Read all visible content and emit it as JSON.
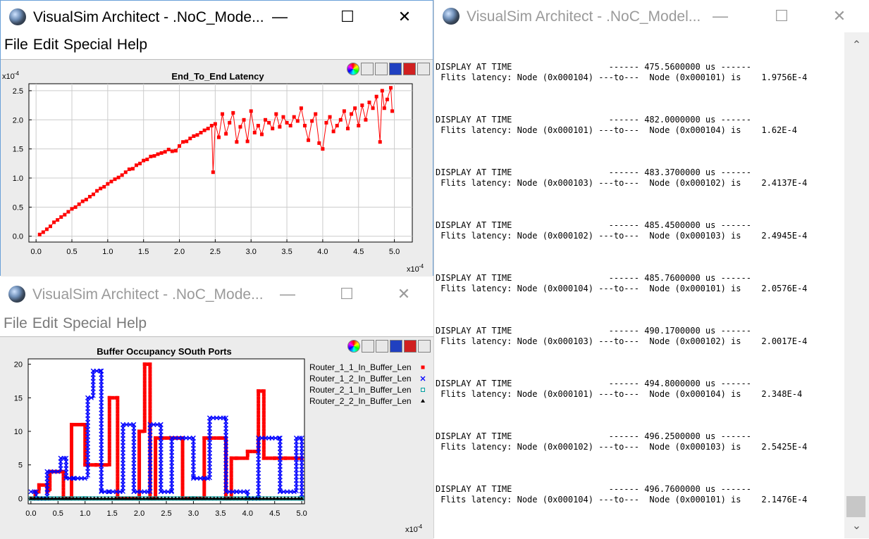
{
  "windows": {
    "latency": {
      "title": "VisualSim Architect - .NoC_Mode...",
      "menu": [
        "File",
        "Edit",
        "Special",
        "Help"
      ]
    },
    "buffer": {
      "title": "VisualSim Architect - .NoC_Mode...",
      "menu": [
        "File",
        "Edit",
        "Special",
        "Help"
      ]
    },
    "console": {
      "title": "VisualSim Architect - .NoC_Model..."
    }
  },
  "icons": [
    "colors-icon",
    "save-icon",
    "print-icon",
    "reset-axes-icon",
    "fill-icon",
    "zoom-fit-icon"
  ],
  "console": {
    "entries": [
      {
        "line1": "DISPLAY AT TIME                   ------ 475.5600000 us ------",
        "line2": " Flits latency: Node (0x000104) ---to---  Node (0x000101) is    1.9756E-4"
      },
      {
        "line1": "DISPLAY AT TIME                   ------ 482.0000000 us ------",
        "line2": " Flits latency: Node (0x000101) ---to---  Node (0x000104) is    1.62E-4"
      },
      {
        "line1": "DISPLAY AT TIME                   ------ 483.3700000 us ------",
        "line2": " Flits latency: Node (0x000103) ---to---  Node (0x000102) is    2.4137E-4"
      },
      {
        "line1": "DISPLAY AT TIME                   ------ 485.4500000 us ------",
        "line2": " Flits latency: Node (0x000102) ---to---  Node (0x000103) is    2.4945E-4"
      },
      {
        "line1": "DISPLAY AT TIME                   ------ 485.7600000 us ------",
        "line2": " Flits latency: Node (0x000104) ---to---  Node (0x000101) is    2.0576E-4"
      },
      {
        "line1": "DISPLAY AT TIME                   ------ 490.1700000 us ------",
        "line2": " Flits latency: Node (0x000103) ---to---  Node (0x000102) is    2.0017E-4"
      },
      {
        "line1": "DISPLAY AT TIME                   ------ 494.8000000 us ------",
        "line2": " Flits latency: Node (0x000101) ---to---  Node (0x000104) is    2.348E-4"
      },
      {
        "line1": "DISPLAY AT TIME                   ------ 496.2500000 us ------",
        "line2": " Flits latency: Node (0x000102) ---to---  Node (0x000103) is    2.5425E-4"
      },
      {
        "line1": "DISPLAY AT TIME                   ------ 496.7600000 us ------",
        "line2": " Flits latency: Node (0x000104) ---to---  Node (0x000101) is    2.1476E-4"
      }
    ]
  },
  "chart_data": [
    {
      "type": "line",
      "title": "End_To_End Latency",
      "x_exponent": "x10",
      "x_exp_sup": "-4",
      "y_exponent": "x10",
      "y_exp_sup": "-4",
      "xlim": [
        -0.1,
        5.25
      ],
      "ylim": [
        -0.1,
        2.62
      ],
      "xticks": [
        "0.0",
        "0.5",
        "1.0",
        "1.5",
        "2.0",
        "2.5",
        "3.0",
        "3.5",
        "4.0",
        "4.5",
        "5.0"
      ],
      "yticks": [
        "0.0",
        "0.5",
        "1.0",
        "1.5",
        "2.0",
        "2.5"
      ],
      "grid": true,
      "color": "#ff0000",
      "series": [
        {
          "x": [
            0.05,
            0.1,
            0.15,
            0.2,
            0.25,
            0.3,
            0.35,
            0.4,
            0.45,
            0.5,
            0.55,
            0.6,
            0.65,
            0.7,
            0.75,
            0.8,
            0.85,
            0.9,
            0.95,
            1.0,
            1.05,
            1.1,
            1.15,
            1.2,
            1.25,
            1.3,
            1.35,
            1.4,
            1.45,
            1.5,
            1.55,
            1.6,
            1.65,
            1.7,
            1.75,
            1.8,
            1.85,
            1.9,
            1.95,
            2.0,
            2.05,
            2.1,
            2.15,
            2.2,
            2.25,
            2.3,
            2.35,
            2.4,
            2.45,
            2.47,
            2.5,
            2.55,
            2.6,
            2.65,
            2.7,
            2.75,
            2.8,
            2.85,
            2.9,
            2.95,
            3.0,
            3.05,
            3.1,
            3.15,
            3.2,
            3.25,
            3.3,
            3.35,
            3.4,
            3.45,
            3.5,
            3.55,
            3.6,
            3.65,
            3.7,
            3.75,
            3.8,
            3.85,
            3.9,
            3.95,
            4.0,
            4.05,
            4.1,
            4.15,
            4.2,
            4.25,
            4.3,
            4.35,
            4.4,
            4.45,
            4.5,
            4.55,
            4.6,
            4.65,
            4.7,
            4.75,
            4.8,
            4.83,
            4.86,
            4.9,
            4.95,
            4.97
          ],
          "y": [
            0.03,
            0.07,
            0.12,
            0.17,
            0.24,
            0.28,
            0.33,
            0.37,
            0.42,
            0.47,
            0.5,
            0.55,
            0.6,
            0.63,
            0.68,
            0.72,
            0.78,
            0.82,
            0.85,
            0.9,
            0.94,
            0.98,
            1.01,
            1.05,
            1.1,
            1.15,
            1.16,
            1.22,
            1.25,
            1.3,
            1.32,
            1.37,
            1.38,
            1.41,
            1.43,
            1.45,
            1.49,
            1.46,
            1.47,
            1.55,
            1.62,
            1.63,
            1.68,
            1.72,
            1.74,
            1.78,
            1.82,
            1.85,
            1.9,
            1.1,
            1.93,
            1.7,
            2.1,
            1.76,
            1.95,
            2.12,
            1.62,
            1.88,
            2.0,
            1.63,
            2.15,
            1.78,
            1.9,
            1.75,
            2.0,
            1.95,
            1.85,
            2.1,
            1.88,
            2.05,
            1.95,
            1.9,
            2.05,
            1.98,
            2.2,
            1.9,
            1.65,
            1.98,
            2.1,
            1.6,
            1.5,
            1.95,
            2.05,
            1.8,
            1.9,
            2.0,
            2.15,
            1.85,
            2.1,
            2.2,
            1.9,
            2.25,
            2.0,
            2.3,
            2.2,
            2.4,
            1.62,
            2.5,
            2.2,
            2.35,
            2.55,
            2.15
          ]
        }
      ]
    },
    {
      "type": "line",
      "title": "Buffer Occupancy SOuth Ports",
      "x_exponent": "x10",
      "x_exp_sup": "-4",
      "xlim": [
        -0.05,
        5.05
      ],
      "ylim": [
        -0.8,
        20.8
      ],
      "xticks": [
        "0.0",
        "0.5",
        "1.0",
        "1.5",
        "2.0",
        "2.5",
        "3.0",
        "3.5",
        "4.0",
        "4.5",
        "5.0"
      ],
      "yticks": [
        "0",
        "5",
        "10",
        "15",
        "20"
      ],
      "grid": false,
      "legend": "right",
      "series": [
        {
          "name": "Router_1_1_In_Buffer_Len",
          "color": "#ff0000",
          "marker": "square",
          "x": [
            0.0,
            0.08,
            0.15,
            0.3,
            0.35,
            0.6,
            0.75,
            0.95,
            1.0,
            1.2,
            1.45,
            1.6,
            1.75,
            1.9,
            2.0,
            2.1,
            2.2,
            2.3,
            2.6,
            2.8,
            2.9,
            3.0,
            3.2,
            3.5,
            3.6,
            3.7,
            3.8,
            4.0,
            4.2,
            4.3,
            4.5,
            4.7,
            4.9,
            5.0
          ],
          "y": [
            0,
            1,
            2,
            1,
            4,
            0,
            11,
            11,
            5,
            5,
            15,
            0,
            0,
            0,
            10,
            20,
            0,
            9,
            9,
            0,
            0,
            0,
            9,
            9,
            0,
            6,
            6,
            7,
            16,
            6,
            6,
            6,
            6,
            6
          ]
        },
        {
          "name": "Router_1_2_In_Buffer_Len",
          "color": "#0000ff",
          "marker": "x",
          "x": [
            0.0,
            0.1,
            0.3,
            0.55,
            0.65,
            0.8,
            1.05,
            1.15,
            1.3,
            1.45,
            1.7,
            1.9,
            2.2,
            2.4,
            2.6,
            2.8,
            3.0,
            3.2,
            3.3,
            3.6,
            3.8,
            4.0,
            4.2,
            4.45,
            4.6,
            4.9,
            5.0
          ],
          "y": [
            1,
            0,
            4,
            6,
            3,
            3,
            15,
            19,
            1,
            1,
            11,
            1,
            11,
            1,
            9,
            9,
            3,
            3,
            12,
            1,
            1,
            0,
            9,
            9,
            1,
            9,
            0
          ]
        },
        {
          "name": "Router_2_1_In_Buffer_Len",
          "color": "#00a0a0",
          "marker": "open-square",
          "x": [
            0.0,
            1.0,
            2.0,
            3.0,
            4.0,
            5.0
          ],
          "y": [
            0,
            0,
            0,
            0,
            0,
            0
          ]
        },
        {
          "name": "Router_2_2_In_Buffer_Len",
          "color": "#000000",
          "marker": "triangle",
          "x": [
            0.0,
            5.0
          ],
          "y": [
            0,
            0
          ]
        }
      ]
    }
  ]
}
